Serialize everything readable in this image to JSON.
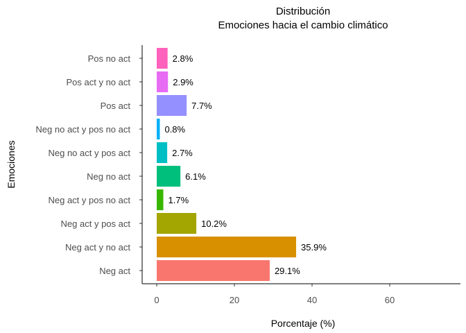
{
  "chart_data": {
    "type": "bar",
    "orientation": "horizontal",
    "title": "Distribución",
    "subtitle": "Emociones hacia el cambio climático",
    "xlabel": "Porcentaje (%)",
    "ylabel": "Emociones",
    "xlim": [
      0,
      75
    ],
    "x_ticks": [
      "0",
      "20",
      "40",
      "60"
    ],
    "grid": false,
    "legend": "none",
    "categories": [
      "Neg act",
      "Neg act y no act",
      "Neg act y pos act",
      "Neg act y pos no act",
      "Neg no act",
      "Neg no act y pos act",
      "Neg no act y pos no act",
      "Pos act",
      "Pos act y no act",
      "Pos no act"
    ],
    "values": [
      29.1,
      35.9,
      10.2,
      1.7,
      6.1,
      2.7,
      0.8,
      7.7,
      2.9,
      2.8
    ],
    "labels": [
      "29.1%",
      "35.9%",
      "10.2%",
      "1.7%",
      "6.1%",
      "2.7%",
      "0.8%",
      "7.7%",
      "2.9%",
      "2.8%"
    ],
    "colors": [
      "#F8766D",
      "#D89000",
      "#A3A500",
      "#39B600",
      "#00BF7D",
      "#00BFC4",
      "#00B0F6",
      "#9590FF",
      "#E76BF3",
      "#FF62BC"
    ]
  }
}
